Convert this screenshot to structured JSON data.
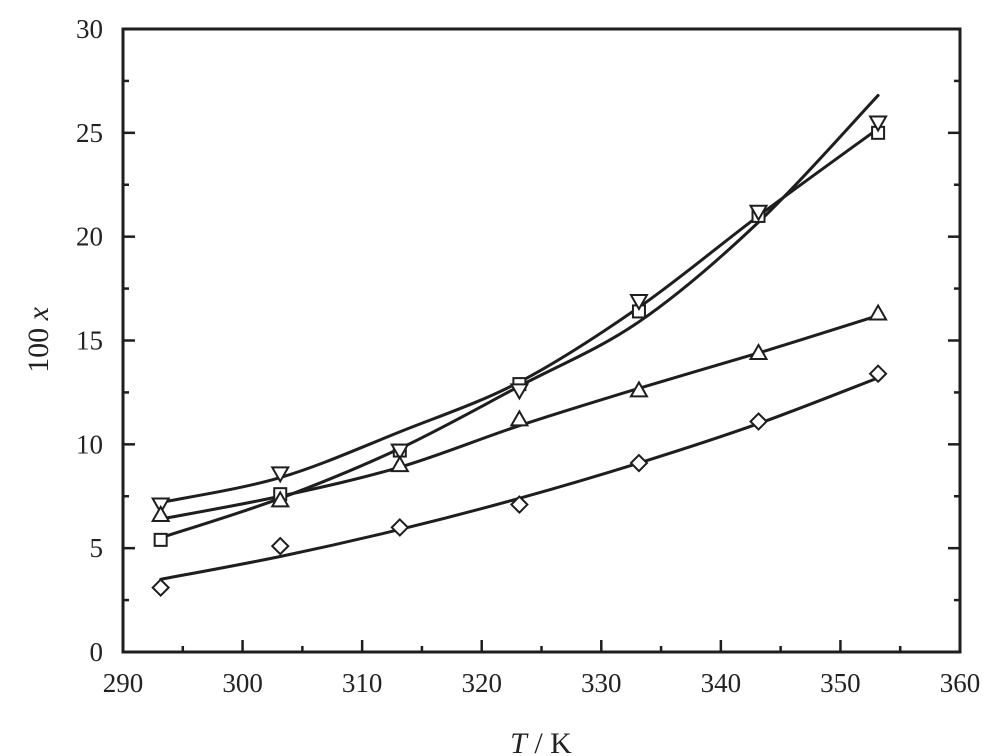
{
  "chart_data": {
    "type": "scatter",
    "title": "",
    "xlabel": "T / K",
    "xlabel_parts": {
      "var": "T",
      "unit": " / K"
    },
    "ylabel": "100 x",
    "ylabel_parts": {
      "prefix": "100 ",
      "var": "x"
    },
    "xlim": [
      290,
      360
    ],
    "ylim": [
      0,
      30
    ],
    "x_ticks": [
      290,
      300,
      310,
      320,
      330,
      340,
      350,
      360
    ],
    "y_ticks": [
      0,
      5,
      10,
      15,
      20,
      25,
      30
    ],
    "x_minor_step": 5,
    "y_minor_step": 2.5,
    "grid": false,
    "legend": null,
    "x": [
      293.15,
      303.15,
      313.15,
      323.15,
      333.15,
      343.15,
      353.15
    ],
    "series": [
      {
        "name": "square",
        "marker": "square",
        "values": [
          5.4,
          7.6,
          9.7,
          12.9,
          16.4,
          21.0,
          25.0
        ],
        "fit": [
          5.5,
          7.4,
          9.8,
          12.8,
          15.9,
          20.7,
          26.8
        ]
      },
      {
        "name": "down-triangle",
        "marker": "triangle-down",
        "values": [
          7.1,
          8.6,
          9.7,
          12.6,
          16.9,
          21.2,
          25.5
        ],
        "fit": [
          7.2,
          8.4,
          10.6,
          13.0,
          16.6,
          21.0,
          25.2
        ]
      },
      {
        "name": "up-triangle",
        "marker": "triangle-up",
        "values": [
          6.6,
          7.3,
          9.0,
          11.2,
          12.6,
          14.4,
          16.3
        ],
        "fit": [
          6.4,
          7.5,
          8.9,
          10.9,
          12.7,
          14.4,
          16.2
        ]
      },
      {
        "name": "diamond",
        "marker": "diamond",
        "values": [
          3.1,
          5.1,
          6.0,
          7.1,
          9.1,
          11.1,
          13.4
        ],
        "fit": [
          3.5,
          4.6,
          5.9,
          7.4,
          9.1,
          11.0,
          13.2
        ]
      }
    ]
  }
}
